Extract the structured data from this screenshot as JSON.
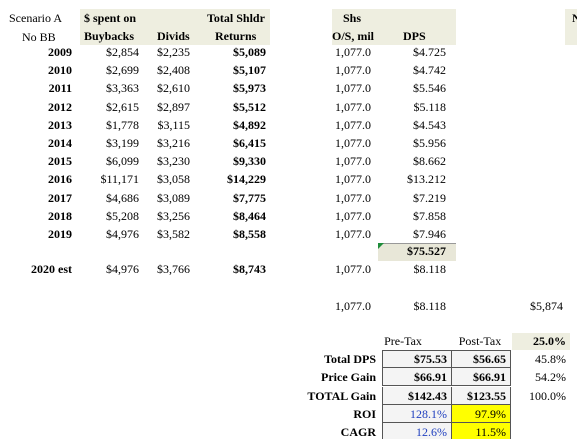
{
  "header": {
    "scenario": "Scenario A",
    "scenario_sub": "No BB",
    "spent_on": "$ spent on",
    "buybacks": "Buybacks",
    "divids": "Divids",
    "total_top": "Total Shldr",
    "total_bottom": "Returns",
    "shs_top": "Shs",
    "shs_bottom": "O/S, mil",
    "dps": "DPS",
    "cut_off": "N"
  },
  "rows": [
    [
      "2009",
      "$2,854",
      "$2,235",
      "$5,089",
      "1,077.0",
      "$4.725"
    ],
    [
      "2010",
      "$2,699",
      "$2,408",
      "$5,107",
      "1,077.0",
      "$4.742"
    ],
    [
      "2011",
      "$3,363",
      "$2,610",
      "$5,973",
      "1,077.0",
      "$5.546"
    ],
    [
      "2012",
      "$2,615",
      "$2,897",
      "$5,512",
      "1,077.0",
      "$5.118"
    ],
    [
      "2013",
      "$1,778",
      "$3,115",
      "$4,892",
      "1,077.0",
      "$4.543"
    ],
    [
      "2014",
      "$3,199",
      "$3,216",
      "$6,415",
      "1,077.0",
      "$5.956"
    ],
    [
      "2015",
      "$6,099",
      "$3,230",
      "$9,330",
      "1,077.0",
      "$8.662"
    ],
    [
      "2016",
      "$11,171",
      "$3,058",
      "$14,229",
      "1,077.0",
      "$13.212"
    ],
    [
      "2017",
      "$4,686",
      "$3,089",
      "$7,775",
      "1,077.0",
      "$7.219"
    ],
    [
      "2018",
      "$5,208",
      "$3,256",
      "$8,464",
      "1,077.0",
      "$7.858"
    ],
    [
      "2019",
      "$4,976",
      "$3,582",
      "$8,558",
      "1,077.0",
      "$7.946"
    ]
  ],
  "dps_sum": "$75.527",
  "estimate_row": [
    "2020 est",
    "$4,976",
    "$3,766",
    "$8,743",
    "1,077.0",
    "$8.118"
  ],
  "extra_row": [
    "1,077.0",
    "$8.118",
    "$5,874"
  ],
  "summary": {
    "header": [
      "Pre-Tax",
      "Post-Tax",
      "25.0%"
    ],
    "rows": [
      [
        "Total DPS",
        "$75.53",
        "$56.65",
        "45.8%"
      ],
      [
        "Price Gain",
        "$66.91",
        "$66.91",
        "54.2%"
      ],
      [
        "TOTAL Gain",
        "$142.43",
        "$123.55",
        "100.0%"
      ],
      [
        "ROI",
        "128.1%",
        "97.9%"
      ],
      [
        "CAGR",
        "12.6%",
        "11.5%"
      ]
    ]
  }
}
